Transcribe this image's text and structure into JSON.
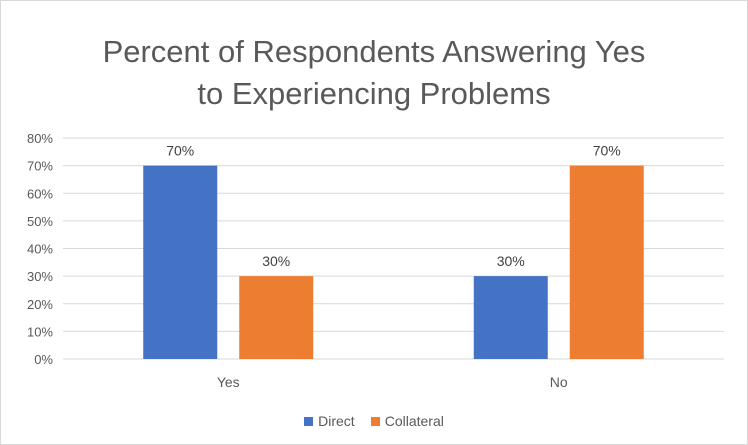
{
  "chart_data": {
    "type": "bar",
    "title_line1": "Percent of Respondents Answering Yes",
    "title_line2": "to Experiencing Problems",
    "categories": [
      "Yes",
      "No"
    ],
    "series": [
      {
        "name": "Direct",
        "color": "#4472c4",
        "values": [
          70,
          30
        ],
        "labels": [
          "70%",
          "30%"
        ]
      },
      {
        "name": "Collateral",
        "color": "#ed7d31",
        "values": [
          30,
          70
        ],
        "labels": [
          "30%",
          "70%"
        ]
      }
    ],
    "ylim": [
      0,
      80
    ],
    "yticks": [
      0,
      10,
      20,
      30,
      40,
      50,
      60,
      70,
      80
    ],
    "ytick_labels": [
      "0%",
      "10%",
      "20%",
      "30%",
      "40%",
      "50%",
      "60%",
      "70%",
      "80%"
    ],
    "grid": true,
    "legend_position": "bottom"
  }
}
